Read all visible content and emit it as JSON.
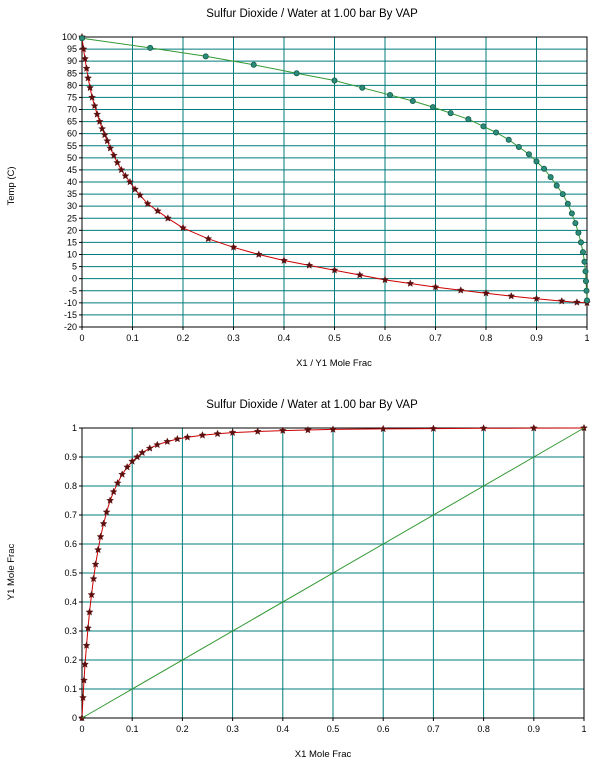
{
  "chart_data": [
    {
      "type": "line",
      "title": "Sulfur Dioxide / Water at     1.00 bar By VAP",
      "xlabel": "X1 / Y1 Mole Frac",
      "ylabel": "Temp (C)",
      "xlim": [
        0,
        1
      ],
      "ylim": [
        -20,
        100
      ],
      "xticks": [
        "0",
        "0.1",
        "0.2",
        "0.3",
        "0.4",
        "0.5",
        "0.6",
        "0.7",
        "0.8",
        "0.9",
        "1"
      ],
      "yticks": [
        "100",
        "95",
        "90",
        "85",
        "80",
        "75",
        "70",
        "65",
        "60",
        "55",
        "50",
        "45",
        "40",
        "35",
        "30",
        "25",
        "20",
        "15",
        "10",
        "5",
        "0",
        "-5",
        "-10",
        "-15",
        "-20"
      ],
      "grid": true,
      "colors": {
        "grid": "#007b7b",
        "bubble_line": "#cc0000",
        "bubble_marker": "#5c0f0f",
        "dew_line": "#339933",
        "dew_marker": "#0f5c4a"
      },
      "series": [
        {
          "role": "bubble",
          "marker": "star",
          "x": [
            0,
            0.003,
            0.006,
            0.009,
            0.012,
            0.016,
            0.02,
            0.025,
            0.03,
            0.035,
            0.04,
            0.045,
            0.05,
            0.056,
            0.063,
            0.07,
            0.078,
            0.086,
            0.095,
            0.105,
            0.115,
            0.13,
            0.15,
            0.17,
            0.2,
            0.25,
            0.3,
            0.35,
            0.4,
            0.45,
            0.5,
            0.55,
            0.6,
            0.65,
            0.7,
            0.75,
            0.8,
            0.85,
            0.9,
            0.95,
            0.98,
            1.0
          ],
          "y": [
            100,
            95,
            91,
            87,
            83,
            79,
            75,
            71.5,
            68,
            65,
            62,
            59.5,
            57,
            54,
            51,
            48,
            45,
            42.5,
            40,
            37,
            34.5,
            31,
            28,
            25,
            21,
            16.5,
            13,
            10,
            7.5,
            5.5,
            3.5,
            1.5,
            -0.5,
            -2,
            -3.5,
            -4.8,
            -6,
            -7.2,
            -8.3,
            -9.3,
            -9.8,
            -10
          ]
        },
        {
          "role": "dew",
          "marker": "circle",
          "x": [
            0,
            0.135,
            0.245,
            0.34,
            0.425,
            0.5,
            0.555,
            0.61,
            0.655,
            0.695,
            0.73,
            0.765,
            0.795,
            0.82,
            0.845,
            0.865,
            0.885,
            0.9,
            0.915,
            0.928,
            0.94,
            0.952,
            0.962,
            0.97,
            0.977,
            0.983,
            0.988,
            0.992,
            0.995,
            0.997,
            0.998,
            0.999,
            1.0
          ],
          "y": [
            99.5,
            95.5,
            92,
            88.5,
            85,
            82,
            79,
            76,
            73.5,
            71,
            68.5,
            66,
            63,
            60.5,
            57.5,
            54.5,
            51.5,
            48.5,
            45.5,
            42,
            38.5,
            35,
            31,
            27,
            23,
            19,
            15,
            11,
            7,
            3,
            -1,
            -5,
            -9
          ]
        }
      ]
    },
    {
      "type": "line",
      "title": "Sulfur Dioxide / Water at     1.00 bar By VAP",
      "xlabel": "X1 Mole Frac",
      "ylabel": "Y1 Mole Frac",
      "xlim": [
        0,
        1
      ],
      "ylim": [
        0,
        1
      ],
      "xticks": [
        "0",
        "0.1",
        "0.2",
        "0.3",
        "0.4",
        "0.5",
        "0.6",
        "0.7",
        "0.8",
        "0.9",
        "1"
      ],
      "yticks": [
        "1",
        "0.9",
        "0.8",
        "0.7",
        "0.6",
        "0.5",
        "0.4",
        "0.3",
        "0.2",
        "0.1",
        "0"
      ],
      "grid": true,
      "colors": {
        "grid": "#007b7b",
        "xy_line": "#cc0000",
        "xy_marker": "#5c0f0f",
        "diagonal": "#339933"
      },
      "series": [
        {
          "role": "xy",
          "marker": "star",
          "x": [
            0,
            0.002,
            0.004,
            0.006,
            0.009,
            0.012,
            0.015,
            0.019,
            0.023,
            0.027,
            0.032,
            0.037,
            0.043,
            0.049,
            0.056,
            0.063,
            0.071,
            0.08,
            0.09,
            0.1,
            0.11,
            0.12,
            0.135,
            0.15,
            0.17,
            0.19,
            0.21,
            0.24,
            0.27,
            0.3,
            0.35,
            0.4,
            0.45,
            0.5,
            0.6,
            0.7,
            0.8,
            0.9,
            1.0
          ],
          "y": [
            0,
            0.07,
            0.13,
            0.185,
            0.25,
            0.31,
            0.365,
            0.425,
            0.48,
            0.53,
            0.58,
            0.625,
            0.67,
            0.71,
            0.75,
            0.78,
            0.81,
            0.84,
            0.865,
            0.885,
            0.9,
            0.915,
            0.93,
            0.942,
            0.953,
            0.962,
            0.968,
            0.975,
            0.98,
            0.984,
            0.988,
            0.991,
            0.993,
            0.995,
            0.997,
            0.998,
            0.999,
            0.9995,
            1.0
          ]
        },
        {
          "role": "diagonal",
          "marker": "none",
          "x": [
            0,
            1
          ],
          "y": [
            0,
            1
          ]
        }
      ]
    }
  ]
}
